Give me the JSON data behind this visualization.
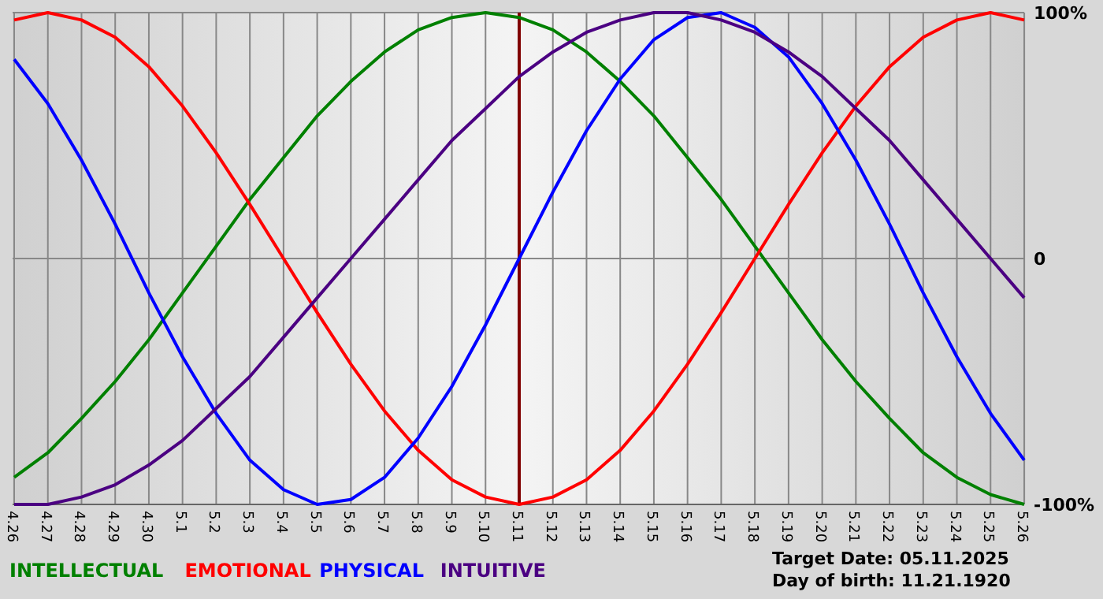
{
  "chart_data": {
    "type": "line",
    "categories": [
      "4.26",
      "4.27",
      "4.28",
      "4.29",
      "4.30",
      "5.1",
      "5.2",
      "5.3",
      "5.4",
      "5.5",
      "5.6",
      "5.7",
      "5.8",
      "5.9",
      "5.10",
      "5.11",
      "5.12",
      "5.13",
      "5.14",
      "5.15",
      "5.16",
      "5.17",
      "5.18",
      "5.19",
      "5.20",
      "5.21",
      "5.22",
      "5.23",
      "5.24",
      "5.25",
      "5.26"
    ],
    "series": [
      {
        "name": "INTELLECTUAL",
        "color": "#008000",
        "values": [
          -89,
          -79,
          -65,
          -50,
          -33,
          -14,
          5,
          24,
          41,
          58,
          72,
          84,
          93,
          98,
          100,
          98,
          93,
          84,
          72,
          58,
          41,
          24,
          5,
          -14,
          -33,
          -50,
          -65,
          -79,
          -89,
          -96,
          -100
        ]
      },
      {
        "name": "EMOTIONAL",
        "color": "#ff0000",
        "values": [
          97,
          100,
          97,
          90,
          78,
          62,
          43,
          22,
          0,
          -22,
          -43,
          -62,
          -78,
          -90,
          -97,
          -100,
          -97,
          -90,
          -78,
          -62,
          -43,
          -22,
          0,
          22,
          43,
          62,
          78,
          90,
          97,
          100,
          97
        ]
      },
      {
        "name": "PHYSICAL",
        "color": "#0000ff",
        "values": [
          81,
          63,
          40,
          14,
          -14,
          -40,
          -63,
          -82,
          -94,
          -100,
          -98,
          -89,
          -73,
          -52,
          -27,
          0,
          27,
          52,
          73,
          89,
          98,
          100,
          94,
          82,
          63,
          40,
          14,
          -14,
          -40,
          -63,
          -82
        ]
      },
      {
        "name": "INTUITIVE",
        "color": "#4b0082",
        "values": [
          -100,
          -100,
          -97,
          -92,
          -84,
          -74,
          -61,
          -48,
          -32,
          -16,
          0,
          16,
          32,
          48,
          61,
          74,
          84,
          92,
          97,
          100,
          100,
          97,
          92,
          84,
          74,
          61,
          48,
          32,
          16,
          0,
          -16
        ]
      }
    ],
    "ylim": [
      -100,
      100
    ],
    "yticks": [
      {
        "value": 100,
        "label": "100%"
      },
      0,
      {
        "value": -100,
        "label": "-100%"
      }
    ],
    "grid": true,
    "legend": "bottom left",
    "ref_lines": [
      {
        "axis": "x",
        "value": "5.11",
        "color": "#800000"
      }
    ],
    "annotations": [
      "Target Date: 05.11.2025",
      "Day of birth: 11.21.1920"
    ]
  }
}
